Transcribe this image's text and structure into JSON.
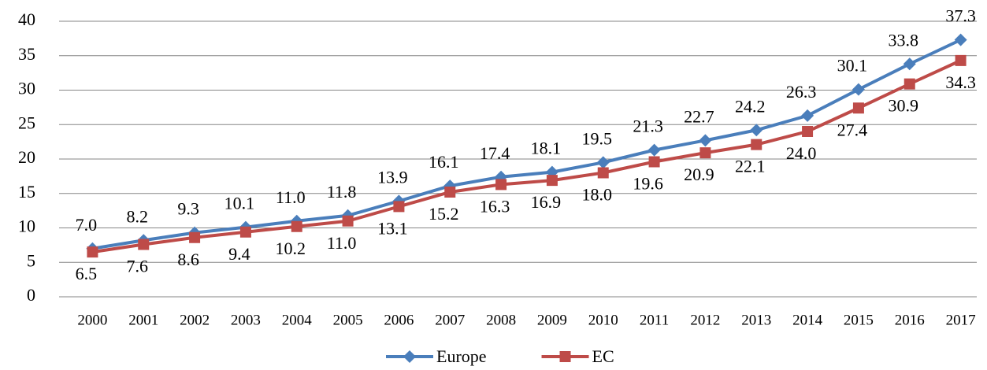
{
  "chart_data": {
    "type": "line",
    "categories": [
      "2000",
      "2001",
      "2002",
      "2003",
      "2004",
      "2005",
      "2006",
      "2007",
      "2008",
      "2009",
      "2010",
      "2011",
      "2012",
      "2013",
      "2014",
      "2015",
      "2016",
      "2017"
    ],
    "series": [
      {
        "name": "Europe",
        "color": "#4a7ebb",
        "marker": "diamond",
        "values": [
          7.0,
          8.2,
          9.3,
          10.1,
          11.0,
          11.8,
          13.9,
          16.1,
          17.4,
          18.1,
          19.5,
          21.3,
          22.7,
          24.2,
          26.3,
          30.1,
          33.8,
          37.3
        ],
        "value_labels": [
          "7.0",
          "8.2",
          "9.3",
          "10.1",
          "11.0",
          "11.8",
          "13.9",
          "16.1",
          "17.4",
          "18.1",
          "19.5",
          "21.3",
          "22.7",
          "24.2",
          "26.3",
          "30.1",
          "33.8",
          "37.3"
        ]
      },
      {
        "name": "EC",
        "color": "#be4b48",
        "marker": "square",
        "values": [
          6.5,
          7.6,
          8.6,
          9.4,
          10.2,
          11.0,
          13.1,
          15.2,
          16.3,
          16.9,
          18.0,
          19.6,
          20.9,
          22.1,
          24.0,
          27.4,
          30.9,
          34.3
        ],
        "value_labels": [
          "6.5",
          "7.6",
          "8.6",
          "9.4",
          "10.2",
          "11.0",
          "13.1",
          "15.2",
          "16.3",
          "16.9",
          "18.0",
          "19.6",
          "20.9",
          "22.1",
          "24.0",
          "27.4",
          "30.9",
          "34.3"
        ]
      }
    ],
    "ylim": [
      0,
      40
    ],
    "yticks": [
      0,
      5,
      10,
      15,
      20,
      25,
      30,
      35,
      40
    ],
    "grid": true,
    "legend": "bottom"
  }
}
